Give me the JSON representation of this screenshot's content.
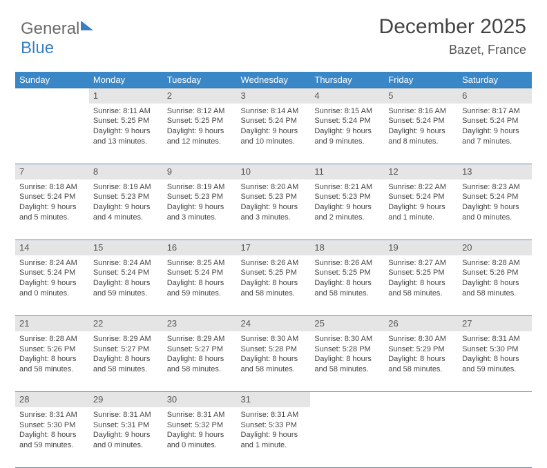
{
  "logo": {
    "part1": "General",
    "part2": "Blue"
  },
  "header": {
    "title": "December 2025",
    "location": "Bazet, France"
  },
  "columns": [
    "Sunday",
    "Monday",
    "Tuesday",
    "Wednesday",
    "Thursday",
    "Friday",
    "Saturday"
  ],
  "colors": {
    "header_bg": "#3a87c7",
    "header_text": "#ffffff",
    "daynum_bg": "#e5e5e5",
    "rule": "#5a8ab8",
    "text": "#444444"
  },
  "weeks": [
    [
      {
        "n": "",
        "sr": "",
        "ss": "",
        "dl": ""
      },
      {
        "n": "1",
        "sr": "8:11 AM",
        "ss": "5:25 PM",
        "dl": "9 hours and 13 minutes."
      },
      {
        "n": "2",
        "sr": "8:12 AM",
        "ss": "5:25 PM",
        "dl": "9 hours and 12 minutes."
      },
      {
        "n": "3",
        "sr": "8:14 AM",
        "ss": "5:24 PM",
        "dl": "9 hours and 10 minutes."
      },
      {
        "n": "4",
        "sr": "8:15 AM",
        "ss": "5:24 PM",
        "dl": "9 hours and 9 minutes."
      },
      {
        "n": "5",
        "sr": "8:16 AM",
        "ss": "5:24 PM",
        "dl": "9 hours and 8 minutes."
      },
      {
        "n": "6",
        "sr": "8:17 AM",
        "ss": "5:24 PM",
        "dl": "9 hours and 7 minutes."
      }
    ],
    [
      {
        "n": "7",
        "sr": "8:18 AM",
        "ss": "5:24 PM",
        "dl": "9 hours and 5 minutes."
      },
      {
        "n": "8",
        "sr": "8:19 AM",
        "ss": "5:23 PM",
        "dl": "9 hours and 4 minutes."
      },
      {
        "n": "9",
        "sr": "8:19 AM",
        "ss": "5:23 PM",
        "dl": "9 hours and 3 minutes."
      },
      {
        "n": "10",
        "sr": "8:20 AM",
        "ss": "5:23 PM",
        "dl": "9 hours and 3 minutes."
      },
      {
        "n": "11",
        "sr": "8:21 AM",
        "ss": "5:23 PM",
        "dl": "9 hours and 2 minutes."
      },
      {
        "n": "12",
        "sr": "8:22 AM",
        "ss": "5:24 PM",
        "dl": "9 hours and 1 minute."
      },
      {
        "n": "13",
        "sr": "8:23 AM",
        "ss": "5:24 PM",
        "dl": "9 hours and 0 minutes."
      }
    ],
    [
      {
        "n": "14",
        "sr": "8:24 AM",
        "ss": "5:24 PM",
        "dl": "9 hours and 0 minutes."
      },
      {
        "n": "15",
        "sr": "8:24 AM",
        "ss": "5:24 PM",
        "dl": "8 hours and 59 minutes."
      },
      {
        "n": "16",
        "sr": "8:25 AM",
        "ss": "5:24 PM",
        "dl": "8 hours and 59 minutes."
      },
      {
        "n": "17",
        "sr": "8:26 AM",
        "ss": "5:25 PM",
        "dl": "8 hours and 58 minutes."
      },
      {
        "n": "18",
        "sr": "8:26 AM",
        "ss": "5:25 PM",
        "dl": "8 hours and 58 minutes."
      },
      {
        "n": "19",
        "sr": "8:27 AM",
        "ss": "5:25 PM",
        "dl": "8 hours and 58 minutes."
      },
      {
        "n": "20",
        "sr": "8:28 AM",
        "ss": "5:26 PM",
        "dl": "8 hours and 58 minutes."
      }
    ],
    [
      {
        "n": "21",
        "sr": "8:28 AM",
        "ss": "5:26 PM",
        "dl": "8 hours and 58 minutes."
      },
      {
        "n": "22",
        "sr": "8:29 AM",
        "ss": "5:27 PM",
        "dl": "8 hours and 58 minutes."
      },
      {
        "n": "23",
        "sr": "8:29 AM",
        "ss": "5:27 PM",
        "dl": "8 hours and 58 minutes."
      },
      {
        "n": "24",
        "sr": "8:30 AM",
        "ss": "5:28 PM",
        "dl": "8 hours and 58 minutes."
      },
      {
        "n": "25",
        "sr": "8:30 AM",
        "ss": "5:28 PM",
        "dl": "8 hours and 58 minutes."
      },
      {
        "n": "26",
        "sr": "8:30 AM",
        "ss": "5:29 PM",
        "dl": "8 hours and 58 minutes."
      },
      {
        "n": "27",
        "sr": "8:31 AM",
        "ss": "5:30 PM",
        "dl": "8 hours and 59 minutes."
      }
    ],
    [
      {
        "n": "28",
        "sr": "8:31 AM",
        "ss": "5:30 PM",
        "dl": "8 hours and 59 minutes."
      },
      {
        "n": "29",
        "sr": "8:31 AM",
        "ss": "5:31 PM",
        "dl": "9 hours and 0 minutes."
      },
      {
        "n": "30",
        "sr": "8:31 AM",
        "ss": "5:32 PM",
        "dl": "9 hours and 0 minutes."
      },
      {
        "n": "31",
        "sr": "8:31 AM",
        "ss": "5:33 PM",
        "dl": "9 hours and 1 minute."
      },
      {
        "n": "",
        "sr": "",
        "ss": "",
        "dl": ""
      },
      {
        "n": "",
        "sr": "",
        "ss": "",
        "dl": ""
      },
      {
        "n": "",
        "sr": "",
        "ss": "",
        "dl": ""
      }
    ]
  ],
  "labels": {
    "sunrise": "Sunrise: ",
    "sunset": "Sunset: ",
    "daylight": "Daylight: "
  }
}
